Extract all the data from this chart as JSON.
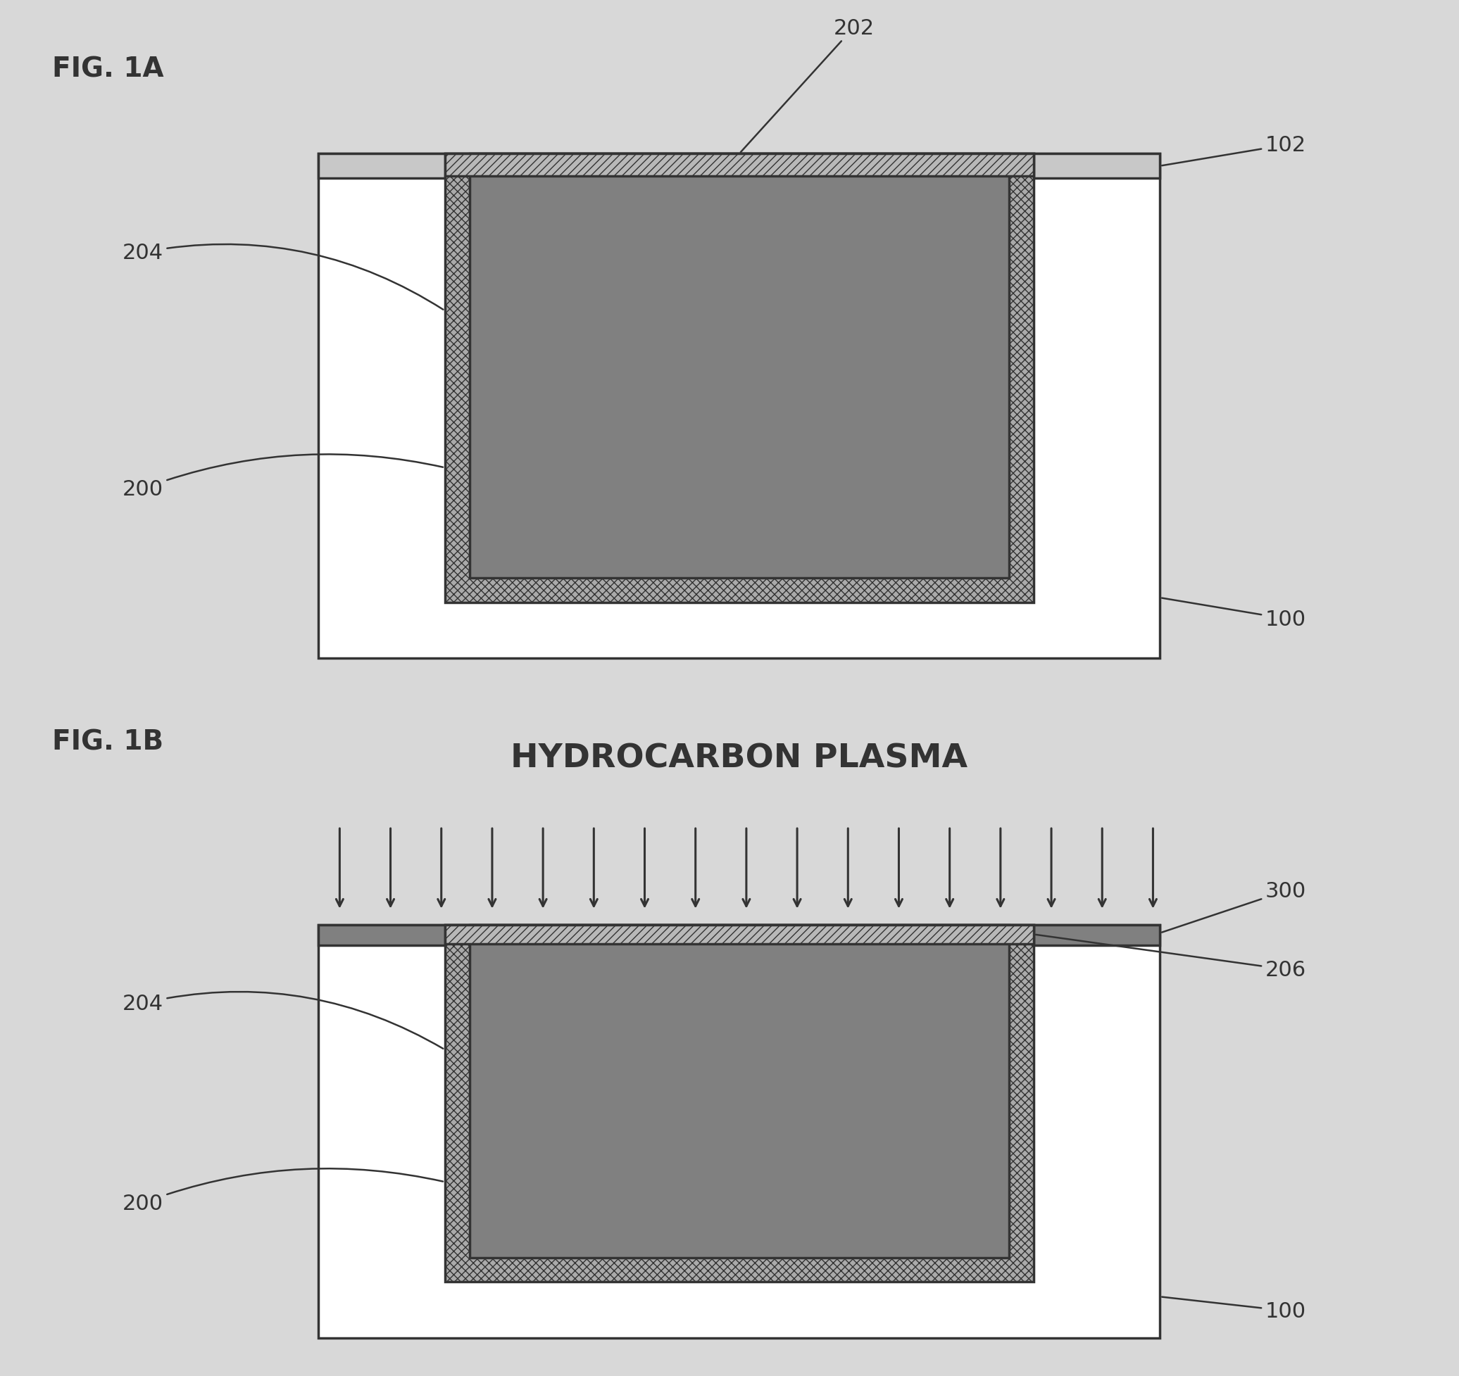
{
  "fig_width": 20.72,
  "fig_height": 19.56,
  "bg_color": "#d8d8d8",
  "line_color": "#333333",
  "fig1a_label": "FIG. 1A",
  "fig1b_label": "FIG. 1B",
  "hydrocarbon_text": "HYDROCARBON PLASMA",
  "color_white_substrate": "#ffffff",
  "color_light_gray": "#c8c8c8",
  "color_med_gray": "#aaaaaa",
  "color_dark_gray": "#808080",
  "color_hatch_bg": "#b8b8b8",
  "color_thin_strip": "#c0c0c0"
}
